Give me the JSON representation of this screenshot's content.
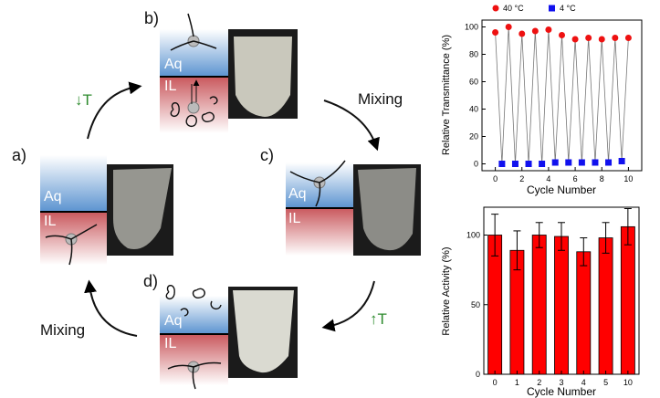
{
  "panels": {
    "a": {
      "letter": "a)",
      "top_phase": "Aq",
      "bottom_phase": "IL"
    },
    "b": {
      "letter": "b)",
      "top_phase": "Aq",
      "bottom_phase": "IL"
    },
    "c": {
      "letter": "c)",
      "top_phase": "Aq",
      "bottom_phase": "IL"
    },
    "d": {
      "letter": "d)",
      "top_phase": "Aq",
      "bottom_phase": "IL"
    }
  },
  "cycle_labels": {
    "top_left": "↓T",
    "top_right": "Mixing",
    "bottom_right": "↑T",
    "bottom_left": "Mixing"
  },
  "colors": {
    "aq_phase": "#5b93d0",
    "il_phase": "#c9585d",
    "arrow_down_T": "#2e8b2e",
    "arrow_up_T": "#2e8b2e",
    "marker_40C": "#ee1111",
    "marker_4C": "#1111ee",
    "bar_fill": "#ff0000"
  },
  "chart_data": [
    {
      "type": "scatter",
      "xlabel": "Cycle Number",
      "ylabel": "Relative Transmittance (%)",
      "xlim": [
        -1,
        11
      ],
      "ylim": [
        -5,
        105
      ],
      "x_ticks": [
        0,
        2,
        4,
        6,
        8,
        10
      ],
      "y_ticks": [
        0,
        20,
        40,
        60,
        80,
        100
      ],
      "legend_position": "top",
      "connected_alternating": true,
      "series": [
        {
          "name": "40 °C",
          "marker": "circle",
          "x": [
            0,
            1,
            2,
            3,
            4,
            5,
            6,
            7,
            8,
            9,
            10
          ],
          "y": [
            96,
            100,
            95,
            97,
            98,
            94,
            91,
            92,
            91,
            92,
            92
          ]
        },
        {
          "name": "4 °C",
          "marker": "square",
          "x": [
            0.5,
            1.5,
            2.5,
            3.5,
            4.5,
            5.5,
            6.5,
            7.5,
            8.5,
            9.5
          ],
          "y": [
            0,
            0,
            0,
            0,
            1,
            1,
            1,
            1,
            1,
            2
          ]
        }
      ]
    },
    {
      "type": "bar",
      "xlabel": "Cycle Number",
      "ylabel": "Relative Activity (%)",
      "categories": [
        "0",
        "1",
        "2",
        "3",
        "4",
        "5",
        "10"
      ],
      "values": [
        100,
        89,
        100,
        99,
        88,
        98,
        106
      ],
      "errors": [
        15,
        14,
        9,
        10,
        10,
        11,
        13
      ],
      "ylim": [
        0,
        120
      ],
      "y_ticks": [
        0,
        50,
        100
      ]
    }
  ]
}
